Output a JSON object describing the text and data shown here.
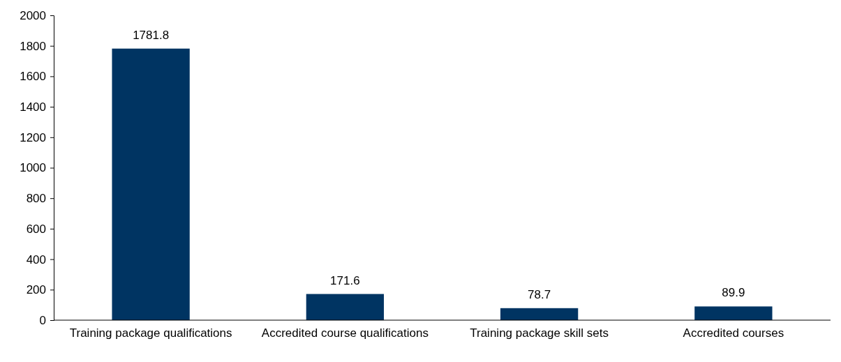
{
  "chart_data": {
    "type": "bar",
    "categories": [
      "Training package qualifications",
      "Accredited course qualifications",
      "Training package skill sets",
      "Accredited courses"
    ],
    "values": [
      1781.8,
      171.6,
      78.7,
      89.9
    ],
    "color": "#003462",
    "ylim": [
      0,
      2000
    ],
    "yticks": [
      0,
      200,
      400,
      600,
      800,
      1000,
      1200,
      1400,
      1600,
      1800,
      2000
    ],
    "grid": false,
    "data_labels": true
  }
}
